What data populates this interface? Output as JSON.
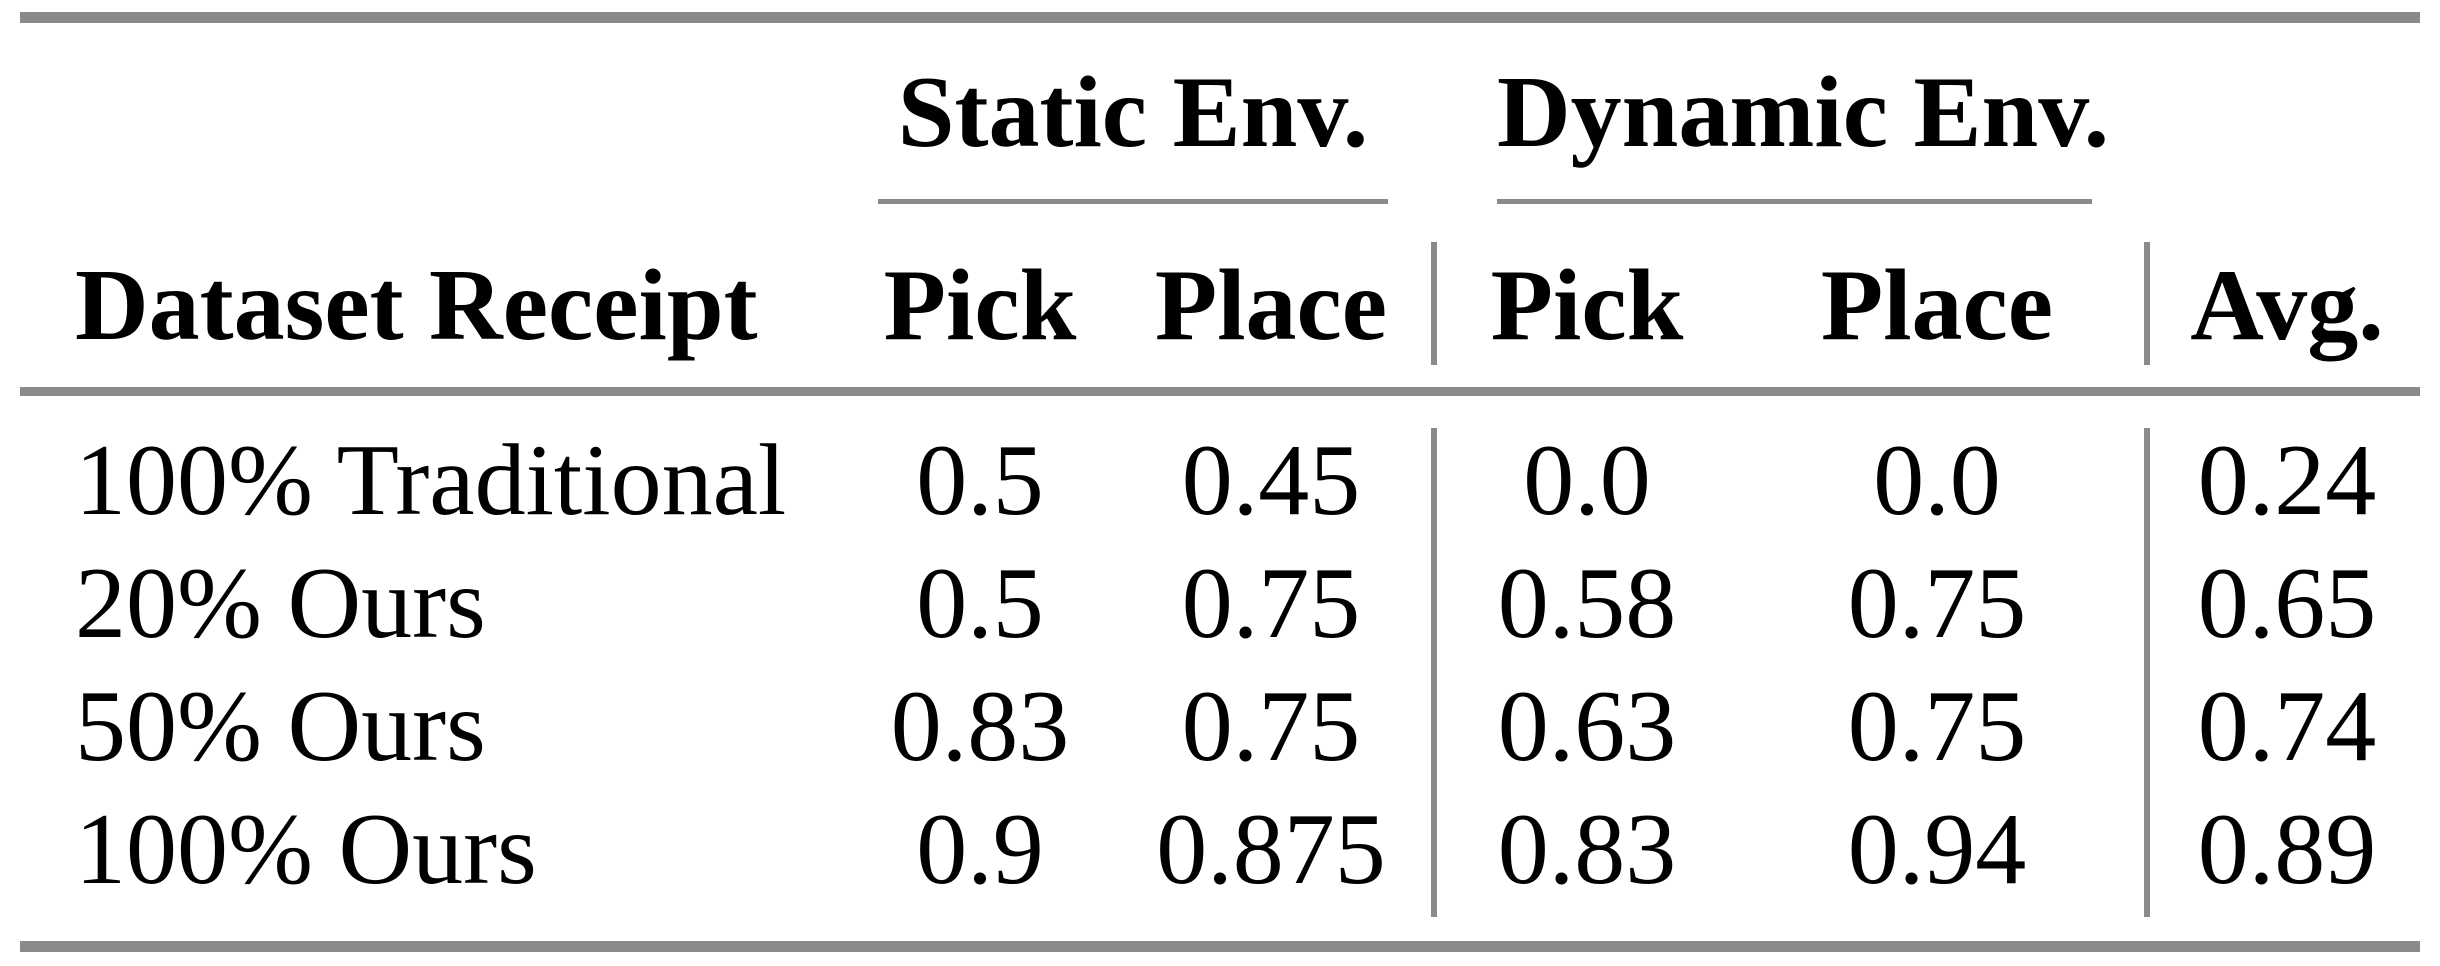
{
  "figure": {
    "background": "#ffffff",
    "text_color": "#000000",
    "rule_color": "#8a8a8a"
  },
  "table": {
    "column_groups": [
      {
        "label": "Static Env.",
        "columns": [
          "Pick",
          "Place"
        ]
      },
      {
        "label": "Dynamic Env.",
        "columns": [
          "Pick",
          "Place"
        ]
      }
    ],
    "header_cells": [
      "Dataset Receipt",
      "Pick",
      "Place",
      "Pick",
      "Place",
      "Avg."
    ],
    "rows": [
      {
        "cells": [
          "100% Traditional",
          "0.5",
          "0.45",
          "0.0",
          "0.0",
          "0.24"
        ]
      },
      {
        "cells": [
          "20% Ours",
          "0.5",
          "0.75",
          "0.58",
          "0.75",
          "0.65"
        ]
      },
      {
        "cells": [
          "50% Ours",
          "0.83",
          "0.75",
          "0.63",
          "0.75",
          "0.74"
        ]
      },
      {
        "cells": [
          "100% Ours",
          "0.9",
          "0.875",
          "0.83",
          "0.94",
          "0.89"
        ]
      }
    ]
  },
  "chart_data": {
    "type": "table",
    "columns": [
      "Dataset Receipt",
      "Static Env. Pick",
      "Static Env. Place",
      "Dynamic Env. Pick",
      "Dynamic Env. Place",
      "Avg."
    ],
    "rows": [
      [
        "100% Traditional",
        0.5,
        0.45,
        0.0,
        0.0,
        0.24
      ],
      [
        "20% Ours",
        0.5,
        0.75,
        0.58,
        0.75,
        0.65
      ],
      [
        "50% Ours",
        0.83,
        0.75,
        0.63,
        0.75,
        0.74
      ],
      [
        "100% Ours",
        0.9,
        0.875,
        0.83,
        0.94,
        0.89
      ]
    ]
  }
}
